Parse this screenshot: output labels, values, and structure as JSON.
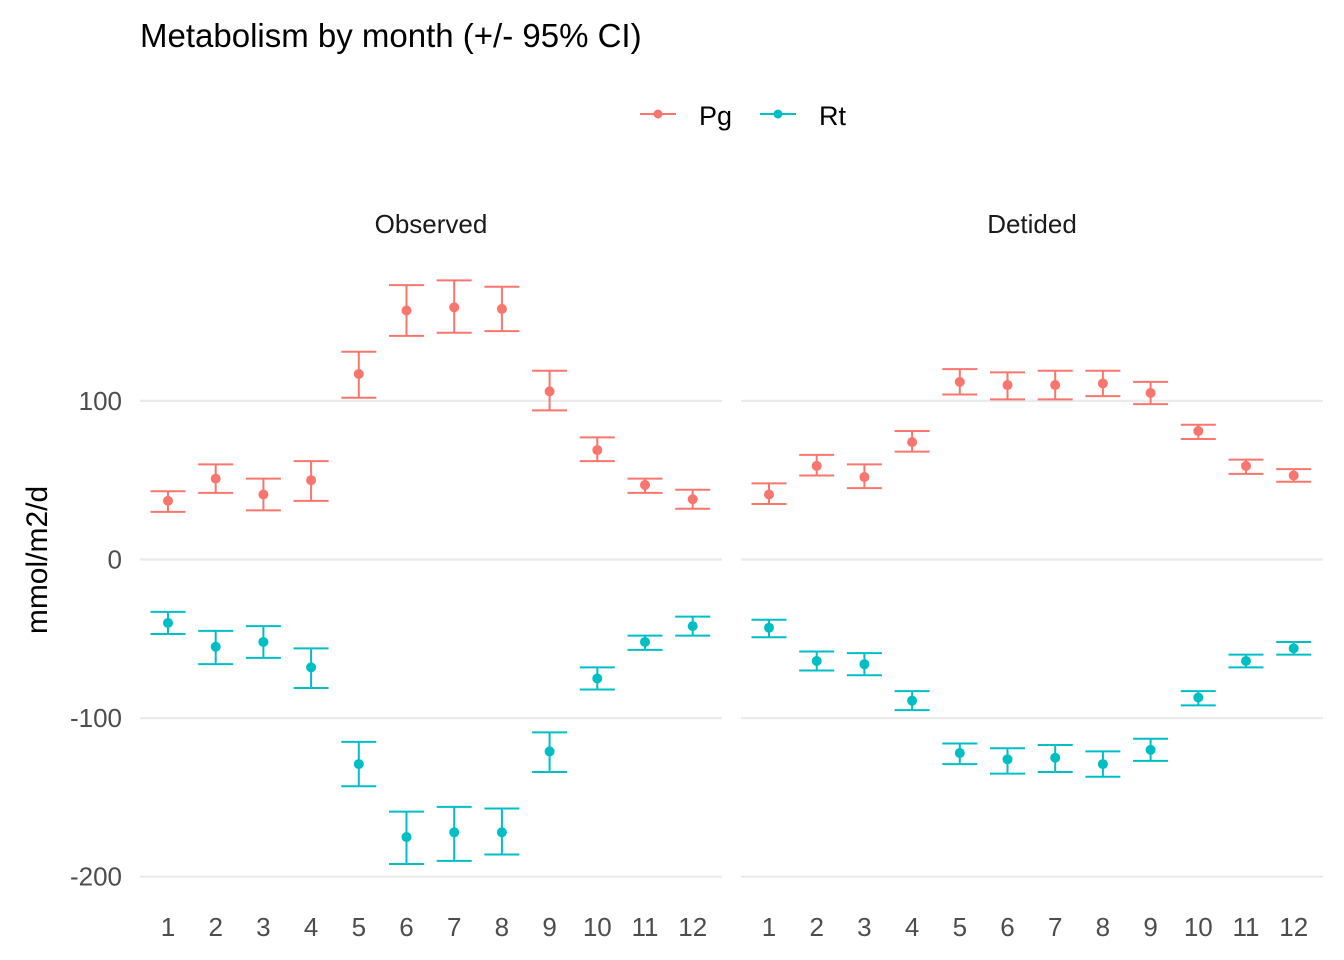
{
  "chart_data": {
    "type": "scatter",
    "title": "Metabolism by month (+/- 95% CI)",
    "ylabel": "mmol/m2/d",
    "xlabel": "",
    "ylim": [
      -210,
      180
    ],
    "y_ticks": [
      100,
      0,
      -100,
      -200
    ],
    "y_tick_labels": [
      "100",
      "0",
      "-100",
      "-200"
    ],
    "categories": [
      "1",
      "2",
      "3",
      "4",
      "5",
      "6",
      "7",
      "8",
      "9",
      "10",
      "11",
      "12"
    ],
    "legend": {
      "position": "top",
      "items": [
        {
          "name": "Pg",
          "color": "#F8766D"
        },
        {
          "name": "Rt",
          "color": "#00BFC4"
        }
      ]
    },
    "grid": true,
    "panels": [
      {
        "name": "Observed",
        "series": [
          {
            "name": "Pg",
            "color": "#F8766D",
            "values": [
              37,
              51,
              41,
              50,
              117,
              157,
              159,
              158,
              106,
              69,
              47,
              38
            ],
            "lower": [
              30,
              42,
              31,
              37,
              102,
              141,
              143,
              144,
              94,
              62,
              42,
              32
            ],
            "upper": [
              43,
              60,
              51,
              62,
              131,
              173,
              176,
              172,
              119,
              77,
              51,
              44
            ]
          },
          {
            "name": "Rt",
            "color": "#00BFC4",
            "values": [
              -40,
              -55,
              -52,
              -68,
              -129,
              -175,
              -172,
              -172,
              -121,
              -75,
              -52,
              -42
            ],
            "lower": [
              -47,
              -66,
              -62,
              -81,
              -143,
              -192,
              -190,
              -186,
              -134,
              -82,
              -57,
              -48
            ],
            "upper": [
              -33,
              -45,
              -42,
              -56,
              -115,
              -159,
              -156,
              -157,
              -109,
              -68,
              -48,
              -36
            ]
          }
        ]
      },
      {
        "name": "Detided",
        "series": [
          {
            "name": "Pg",
            "color": "#F8766D",
            "values": [
              41,
              59,
              52,
              74,
              112,
              110,
              110,
              111,
              105,
              81,
              59,
              53
            ],
            "lower": [
              35,
              53,
              45,
              68,
              104,
              101,
              101,
              103,
              98,
              76,
              54,
              49
            ],
            "upper": [
              48,
              66,
              60,
              81,
              120,
              118,
              119,
              119,
              112,
              85,
              63,
              57
            ]
          },
          {
            "name": "Rt",
            "color": "#00BFC4",
            "values": [
              -43,
              -64,
              -66,
              -89,
              -122,
              -126,
              -125,
              -129,
              -120,
              -87,
              -64,
              -56
            ],
            "lower": [
              -49,
              -70,
              -73,
              -95,
              -129,
              -135,
              -134,
              -137,
              -127,
              -92,
              -68,
              -60
            ],
            "upper": [
              -38,
              -58,
              -59,
              -83,
              -116,
              -119,
              -117,
              -121,
              -113,
              -83,
              -60,
              -52
            ]
          }
        ]
      }
    ]
  }
}
